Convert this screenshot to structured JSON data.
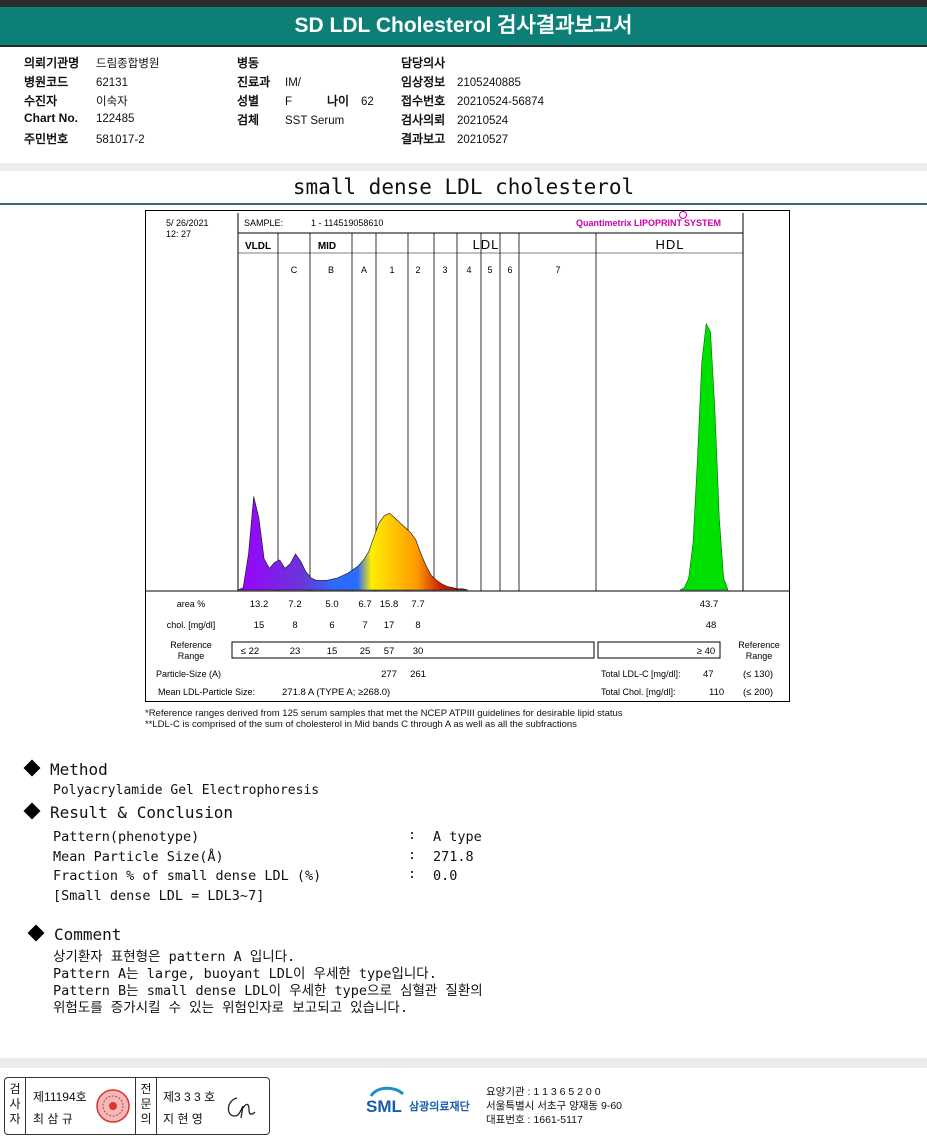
{
  "doc": {
    "title": "SD LDL Cholesterol 검사결과보고서",
    "section_title": "small dense LDL cholesterol"
  },
  "patient": {
    "col1": [
      {
        "label": "의뢰기관명",
        "value": "드림종합병원"
      },
      {
        "label": "병원코드",
        "value": "62131"
      },
      {
        "label": "수진자",
        "value": "이숙자"
      },
      {
        "label": "Chart No.",
        "value": "122485"
      },
      {
        "label": "주민번호",
        "value": "581017-2"
      }
    ],
    "col2": [
      {
        "label": "병동",
        "value": ""
      },
      {
        "label": "진료과",
        "value": "IM/"
      },
      {
        "label": "성별",
        "value": "F"
      },
      {
        "label": "검체",
        "value": "SST Serum"
      }
    ],
    "age": {
      "label": "나이",
      "value": "62"
    },
    "col3": [
      {
        "label": "담당의사",
        "value": ""
      },
      {
        "label": "임상정보",
        "value": "2105240885"
      },
      {
        "label": "접수번호",
        "value": "20210524-56874"
      },
      {
        "label": "검사의뢰",
        "value": "20210524"
      },
      {
        "label": "결과보고",
        "value": "20210527"
      }
    ]
  },
  "lipoprint": {
    "date": "5/ 26/2021",
    "time": "12: 27",
    "sample": "SAMPLE:",
    "sample_id": "1 - 114519058610",
    "brand": "Quantimetrix LIPOPRINT",
    "brand_suffix": "SYSTEM",
    "groups": [
      "VLDL",
      "MID",
      "LDL",
      "HDL"
    ],
    "bands": [
      "C",
      "B",
      "A",
      "1",
      "2",
      "3",
      "4",
      "5",
      "6",
      "7"
    ],
    "area_label": "area %",
    "area_values": [
      "13.2",
      "7.2",
      "5.0",
      "6.7",
      "15.8",
      "7.7"
    ],
    "area_hdl": "43.7",
    "chol_label": "chol. [mg/dl]",
    "chol_values": [
      "15",
      "8",
      "6",
      "7",
      "17",
      "8"
    ],
    "chol_hdl": "48",
    "ref_label": "Reference",
    "ref_label2": "Range",
    "ref_values": [
      "≤ 22",
      "23",
      "15",
      "25",
      "57",
      "30"
    ],
    "ref_hdl": "≥  40",
    "ref_right_label": "Reference",
    "ref_right_label2": "Range",
    "particle_label": "Particle-Size (A)",
    "particle_values": [
      "277",
      "261"
    ],
    "mean_label": "Mean LDL-Particle Size:",
    "mean_value": "271.8  A    (TYPE A; ≥268.0)",
    "total_ldl_label": "Total LDL-C [mg/dl]:",
    "total_ldl_value": "47",
    "total_ldl_ref": "(≤ 130)",
    "total_chol_label": "Total Chol. [mg/dl]:",
    "total_chol_value": "110",
    "total_chol_ref": "(≤ 200)"
  },
  "chart_data": {
    "type": "area",
    "title": "",
    "xlabel": "",
    "ylabel": "",
    "series": [
      {
        "values": [
          0,
          2,
          30,
          78,
          60,
          26,
          18,
          23,
          25,
          18,
          22,
          30,
          24,
          15,
          10,
          8,
          8,
          8,
          9,
          10,
          12,
          14,
          17,
          20,
          25,
          32,
          44,
          56,
          62,
          64,
          60,
          56,
          52,
          48,
          42,
          30,
          20,
          12,
          8,
          5,
          3,
          2,
          1,
          1,
          0
        ]
      },
      {
        "values": [
          0,
          2,
          10,
          40,
          110,
          190,
          222,
          215,
          150,
          60,
          10,
          0
        ]
      }
    ],
    "colors": [
      "#9b00ff",
      "#7a2bd6",
      "#2b6cff",
      "#ffee00",
      "#ff9900",
      "#cc2200",
      "#00e000"
    ]
  },
  "footnotes": [
    "*Reference ranges derived from 125 serum samples that met the NCEP ATPIII guidelines for desirable lipid status",
    "**LDL-C is comprised of the sum of cholesterol in Mid bands C through A as well as all the subfractions"
  ],
  "method": {
    "heading": "Method",
    "text": "Polyacrylamide Gel Electrophoresis"
  },
  "result": {
    "heading": "Result & Conclusion",
    "rows": [
      {
        "label": "Pattern(phenotype)",
        "sep": ":",
        "value": "A type"
      },
      {
        "label": "Mean Particle Size(Å)",
        "sep": ":",
        "value": "271.8"
      },
      {
        "label": "Fraction % of small dense LDL (%)",
        "sep": ":",
        "value": "0.0"
      }
    ],
    "note": "[Small dense LDL = LDL3~7]"
  },
  "comment": {
    "heading": "Comment",
    "lines": [
      "상기환자 표현형은 pattern A 입니다.",
      "Pattern A는 large, buoyant LDL이 우세한 type입니다.",
      "Pattern B는 small dense LDL이 우세한 type으로 심혈관 질환의",
      "위험도를 증가시킬 수 있는 위험인자로 보고되고 있습니다."
    ]
  },
  "footer": {
    "vtext1": [
      "검",
      "사",
      "자"
    ],
    "doc1_no": "제11194호",
    "doc1_name": "최 삼 규",
    "vtext2": [
      "전",
      "문",
      "의"
    ],
    "doc2_no": "제3 3 3 호",
    "doc2_name": "지 현 영",
    "lab_logo": "SML",
    "lab_name": "삼광의료재단",
    "lab_lines": [
      "요양기관 : 1 1 3 6 5 2 0 0",
      "서울특별시 서초구 양재동 9-60",
      "대표번호 : 1661-5117"
    ]
  }
}
